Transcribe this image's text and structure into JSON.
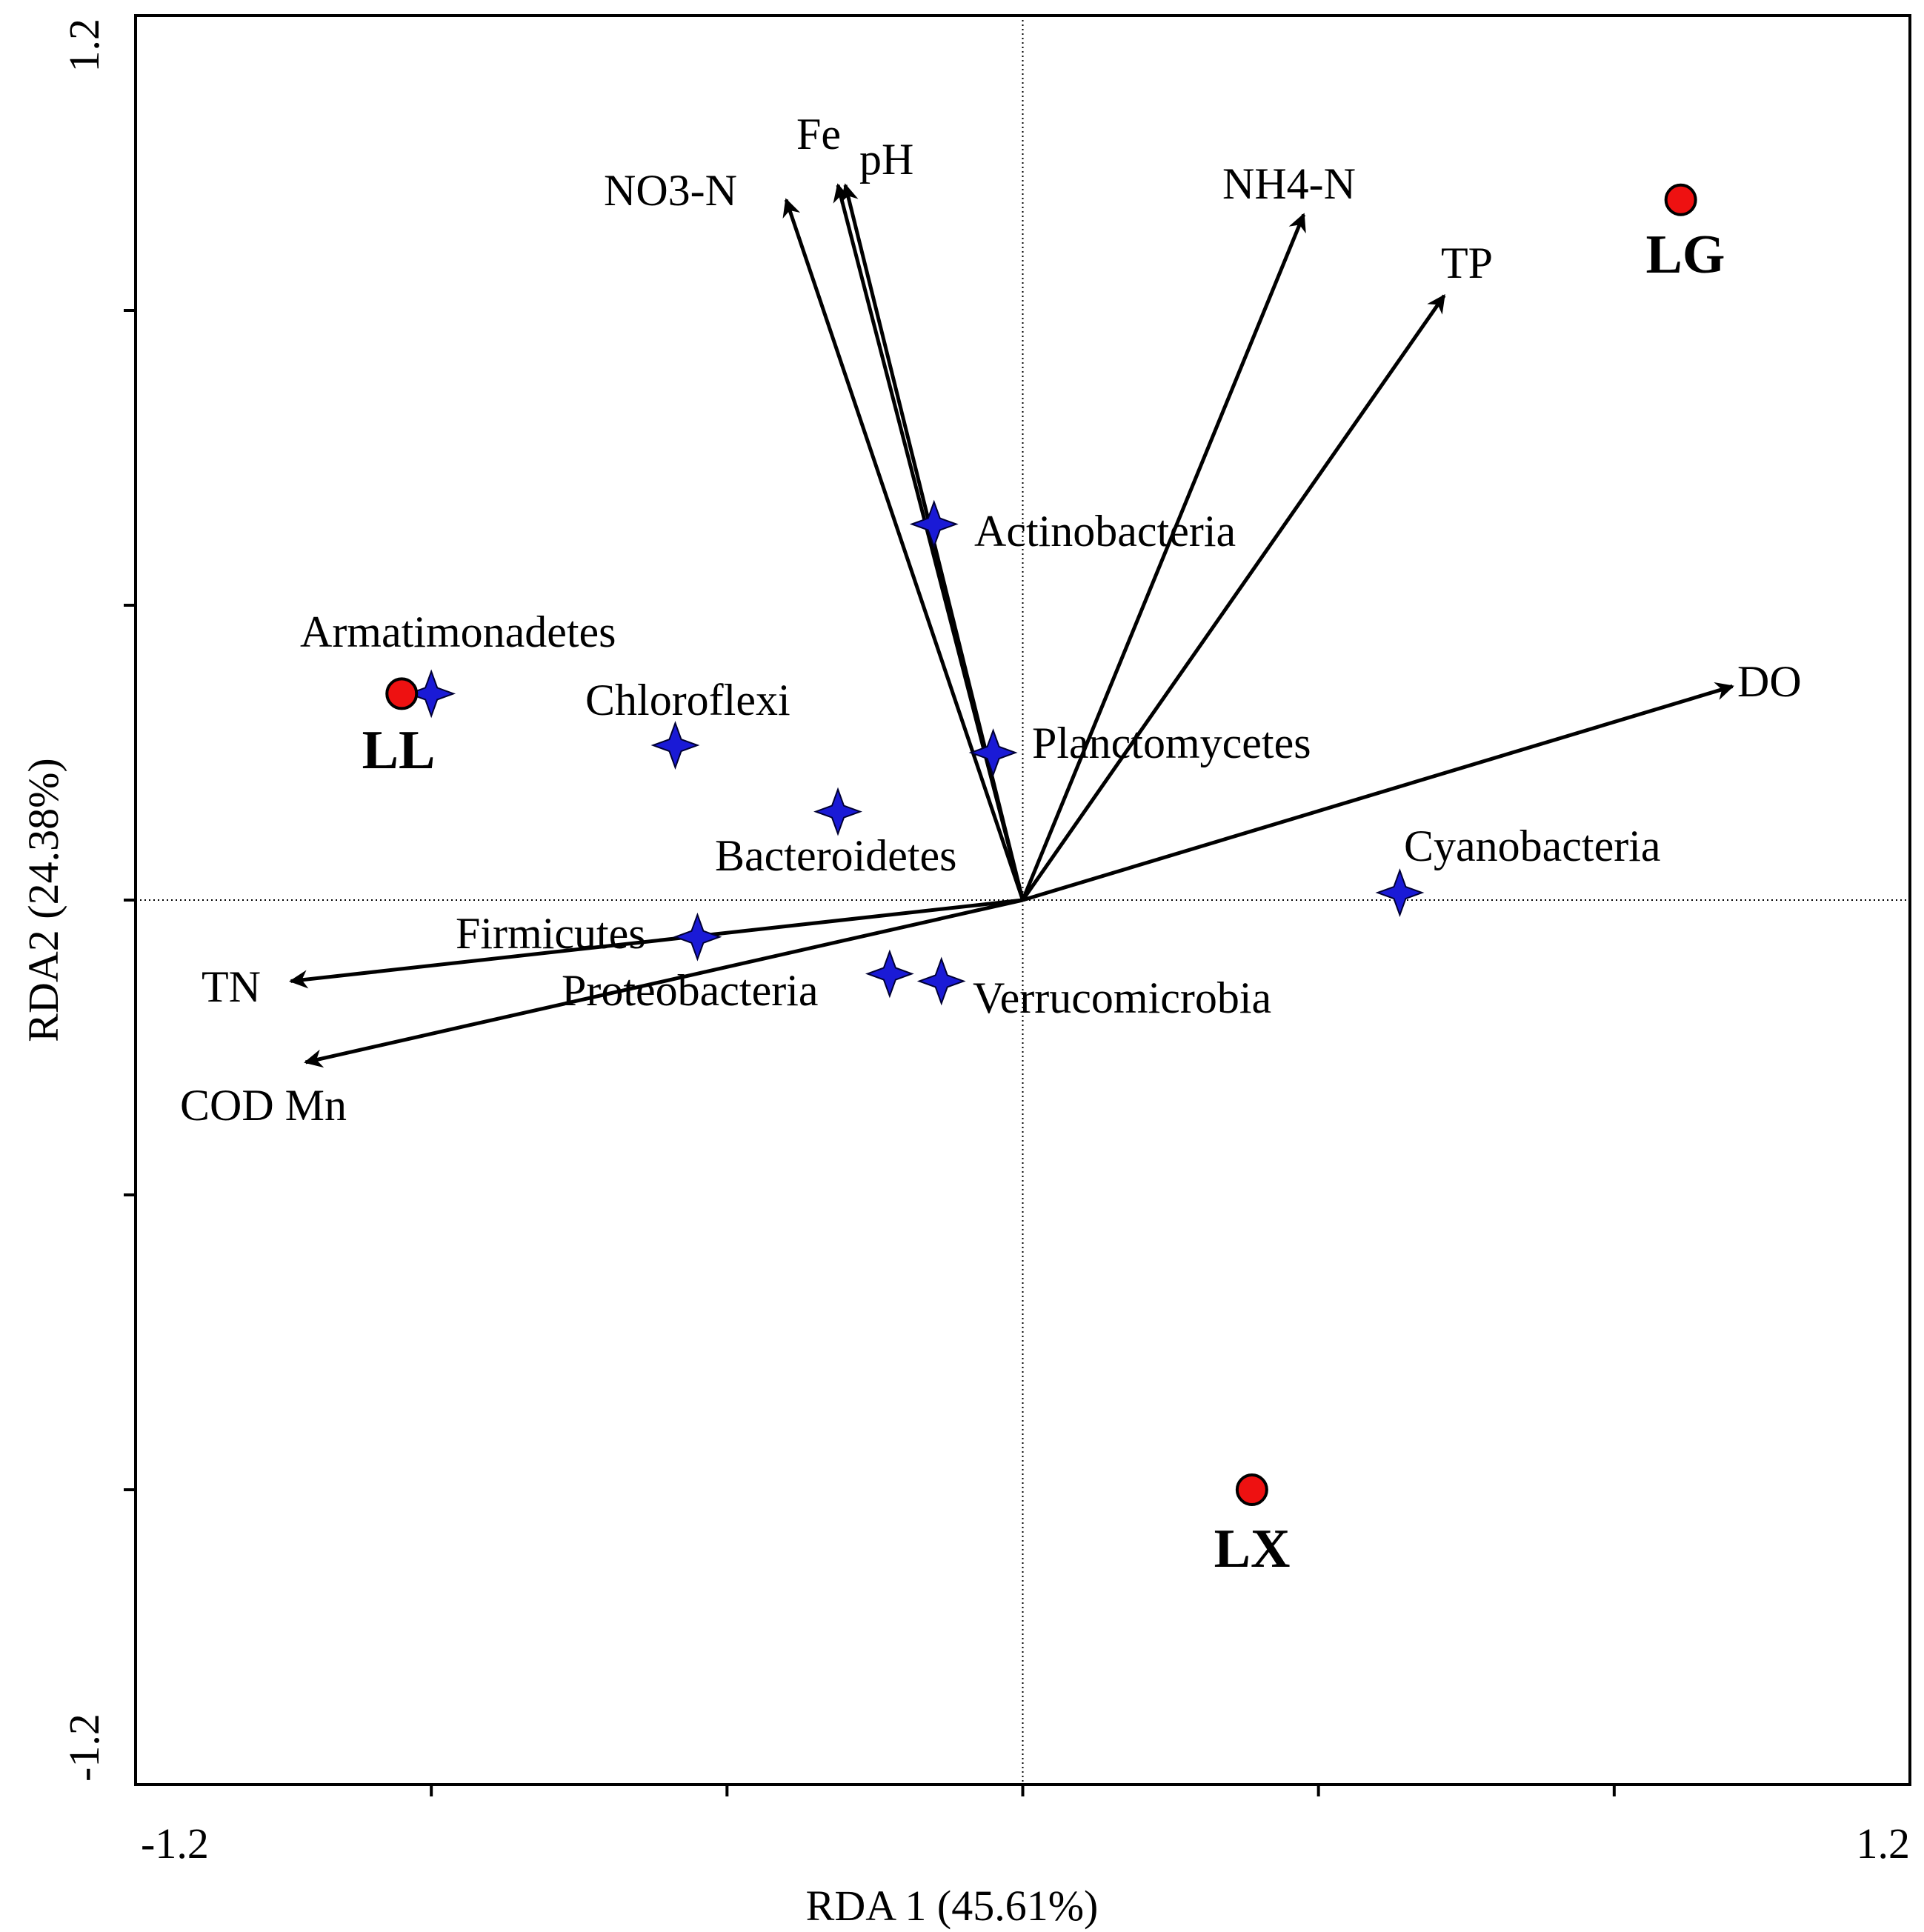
{
  "chart_data": {
    "type": "scatter",
    "subtype": "RDA biplot",
    "title": "",
    "xlabel": "RDA 1 (45.61%)",
    "ylabel": "RDA2 (24.38%)",
    "xlim": [
      -1.2,
      1.2
    ],
    "ylim": [
      -1.2,
      1.2
    ],
    "x_tick_labels": [
      {
        "value": -1.2,
        "text": "-1.2"
      },
      {
        "value": 1.2,
        "text": "1.2"
      }
    ],
    "y_tick_labels": [
      {
        "value": 1.2,
        "text": "1.2"
      },
      {
        "value": -1.2,
        "text": "-1.2"
      }
    ],
    "grid": false,
    "zero_lines": true,
    "environmental_vectors": [
      {
        "name": "NO3-N",
        "x": -0.32,
        "y": 0.95
      },
      {
        "name": "Fe",
        "x": -0.25,
        "y": 0.97
      },
      {
        "name": "pH",
        "x": -0.24,
        "y": 0.97
      },
      {
        "name": "NH4-N",
        "x": 0.38,
        "y": 0.93
      },
      {
        "name": "TP",
        "x": 0.57,
        "y": 0.82
      },
      {
        "name": "DO",
        "x": 0.96,
        "y": 0.29
      },
      {
        "name": "TN",
        "x": -0.99,
        "y": -0.11
      },
      {
        "name": "COD Mn",
        "x": -0.97,
        "y": -0.22
      }
    ],
    "phyla": [
      {
        "name": "Actinobacteria",
        "x": -0.12,
        "y": 0.51
      },
      {
        "name": "Armatimonadetes",
        "x": -0.8,
        "y": 0.28
      },
      {
        "name": "Chloroflexi",
        "x": -0.47,
        "y": 0.21
      },
      {
        "name": "Planctomycetes",
        "x": -0.04,
        "y": 0.2
      },
      {
        "name": "Bacteroidetes",
        "x": -0.25,
        "y": 0.12
      },
      {
        "name": "Cyanobacteria",
        "x": 0.51,
        "y": 0.01
      },
      {
        "name": "Firmicutes",
        "x": -0.44,
        "y": -0.05
      },
      {
        "name": "Proteobacteria",
        "x": -0.18,
        "y": -0.1
      },
      {
        "name": "Verrucomicrobia",
        "x": -0.11,
        "y": -0.11
      }
    ],
    "sites": [
      {
        "name": "LG",
        "x": 0.89,
        "y": 0.95
      },
      {
        "name": "LL",
        "x": -0.84,
        "y": 0.28
      },
      {
        "name": "LX",
        "x": 0.31,
        "y": -0.8
      }
    ],
    "colors": {
      "vector": "#000000",
      "phylum_marker": "#1a1ad6",
      "site_marker": "#ee1111",
      "frame": "#000000"
    }
  }
}
